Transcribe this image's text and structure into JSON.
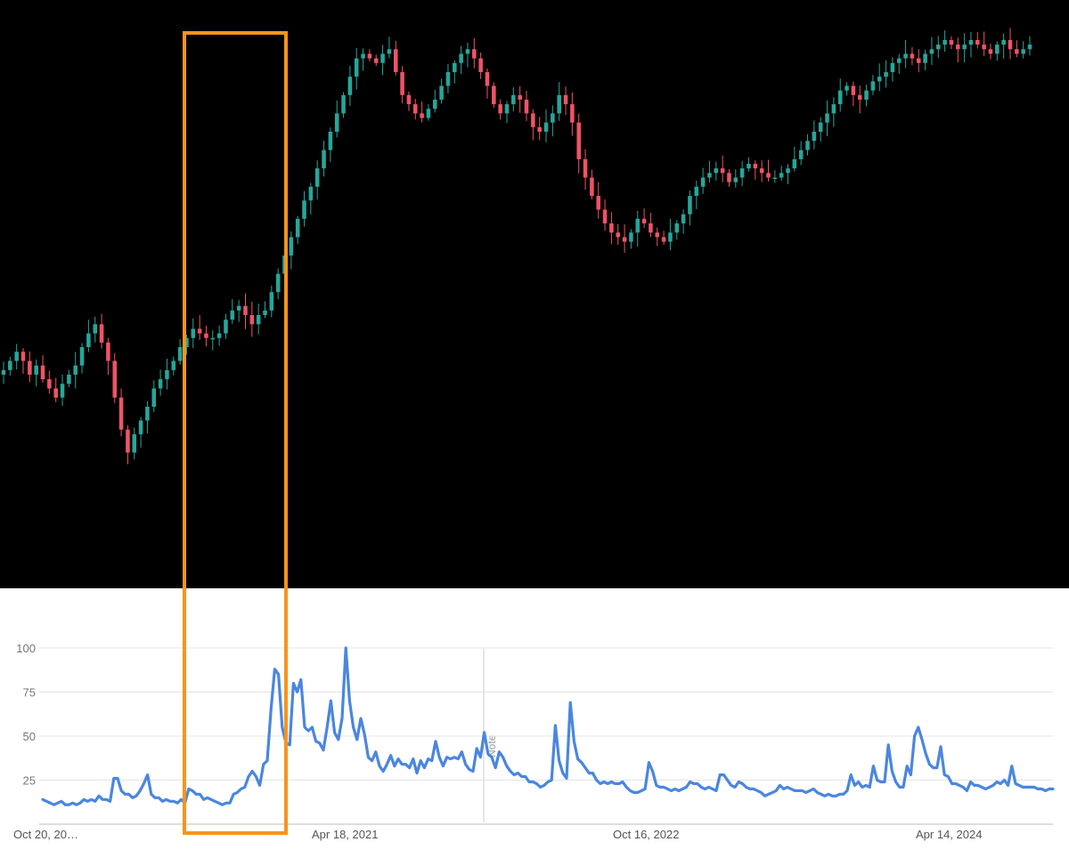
{
  "colors": {
    "up": "#26a69a",
    "down": "#ef5366",
    "trend_line": "#4a86e0",
    "highlight": "#f7941d",
    "price_bg": "#000000",
    "grid": "#e4e4e4"
  },
  "chart_data": [
    {
      "type": "candlestick",
      "title": "",
      "note": "Price chart without visible axes or labels; values are relative price levels (0 = lowest, 100 = highest).",
      "ylim": [
        0,
        100
      ],
      "grid": false,
      "closes": [
        28,
        30,
        32,
        30,
        27,
        29,
        26,
        24,
        22,
        25,
        27,
        29,
        33,
        36,
        38,
        34,
        30,
        22,
        15,
        10,
        14,
        17,
        20,
        24,
        26,
        28,
        30,
        33,
        35,
        37,
        36,
        35,
        35,
        36,
        39,
        41,
        42,
        40,
        38,
        40,
        41,
        45,
        49,
        53,
        57,
        61,
        65,
        68,
        72,
        76,
        80,
        84,
        88,
        92,
        96,
        97,
        96,
        95,
        97,
        98,
        93,
        88,
        86,
        84,
        83,
        85,
        87,
        90,
        93,
        95,
        97,
        98,
        96,
        93,
        90,
        86,
        84,
        86,
        88,
        87,
        84,
        81,
        80,
        82,
        84,
        88,
        86,
        82,
        74,
        70,
        66,
        63,
        60,
        58,
        57,
        56,
        58,
        61,
        60,
        58,
        57,
        56,
        58,
        60,
        62,
        66,
        68,
        70,
        71,
        72,
        71,
        69,
        70,
        72,
        73,
        72,
        71,
        70,
        70,
        71,
        72,
        74,
        76,
        78,
        80,
        82,
        84,
        86,
        89,
        90,
        88,
        87,
        89,
        91,
        92,
        93,
        95,
        96,
        97,
        96,
        95,
        97,
        98,
        99,
        100,
        99,
        98,
        99,
        100,
        99,
        98,
        97,
        99,
        100,
        98,
        97,
        98,
        99
      ],
      "trend_bar_annotation": "highlighted period in orange box"
    },
    {
      "type": "line",
      "title": "",
      "xlabel": "",
      "ylabel": "",
      "ylim": [
        0,
        100
      ],
      "yticks": [
        25,
        50,
        75,
        100
      ],
      "ytick_labels": [
        "25",
        "50",
        "75",
        "100"
      ],
      "xtick_labels": [
        "Oct 20, 20…",
        "Apr 18, 2021",
        "Oct 16, 2022",
        "Apr 14, 2024"
      ],
      "annotation": "Note",
      "grid": true,
      "values": [
        14,
        13,
        12,
        11,
        12,
        13,
        11,
        11,
        12,
        11,
        12,
        14,
        13,
        14,
        13,
        16,
        14,
        14,
        13,
        26,
        26,
        19,
        17,
        17,
        15,
        16,
        19,
        23,
        28,
        17,
        15,
        15,
        13,
        14,
        13,
        13,
        12,
        14,
        12,
        20,
        19,
        17,
        17,
        14,
        15,
        14,
        13,
        12,
        11,
        12,
        12,
        17,
        18,
        20,
        21,
        27,
        30,
        27,
        22,
        34,
        36,
        65,
        88,
        85,
        55,
        46,
        45,
        80,
        75,
        82,
        55,
        53,
        55,
        47,
        46,
        42,
        55,
        70,
        52,
        48,
        60,
        100,
        70,
        55,
        48,
        60,
        51,
        38,
        36,
        41,
        33,
        30,
        34,
        39,
        33,
        37,
        34,
        34,
        32,
        37,
        29,
        36,
        32,
        37,
        36,
        47,
        38,
        33,
        38,
        37,
        38,
        37,
        41,
        34,
        31,
        30,
        43,
        38,
        52,
        40,
        38,
        32,
        41,
        38,
        33,
        30,
        28,
        29,
        27,
        27,
        24,
        24,
        23,
        21,
        22,
        24,
        25,
        56,
        36,
        29,
        26,
        69,
        47,
        37,
        35,
        32,
        29,
        29,
        25,
        23,
        24,
        23,
        24,
        23,
        23,
        24,
        21,
        19,
        18,
        18,
        19,
        20,
        35,
        30,
        22,
        21,
        21,
        20,
        19,
        20,
        19,
        20,
        21,
        24,
        23,
        23,
        21,
        20,
        21,
        20,
        19,
        28,
        28,
        25,
        22,
        21,
        24,
        23,
        21,
        20,
        20,
        19,
        18,
        16,
        17,
        18,
        19,
        22,
        20,
        21,
        20,
        19,
        19,
        19,
        18,
        19,
        20,
        18,
        17,
        16,
        17,
        16,
        16,
        17,
        17,
        19,
        28,
        22,
        24,
        21,
        22,
        21,
        33,
        25,
        24,
        24,
        45,
        30,
        24,
        21,
        21,
        33,
        28,
        50,
        55,
        48,
        40,
        34,
        32,
        32,
        44,
        28,
        27,
        23,
        23,
        22,
        21,
        19,
        24,
        22,
        22,
        21,
        20,
        21,
        22,
        24,
        23,
        25,
        22,
        33,
        23,
        22,
        21,
        21,
        21,
        21,
        20,
        20,
        19,
        20,
        20
      ]
    }
  ]
}
